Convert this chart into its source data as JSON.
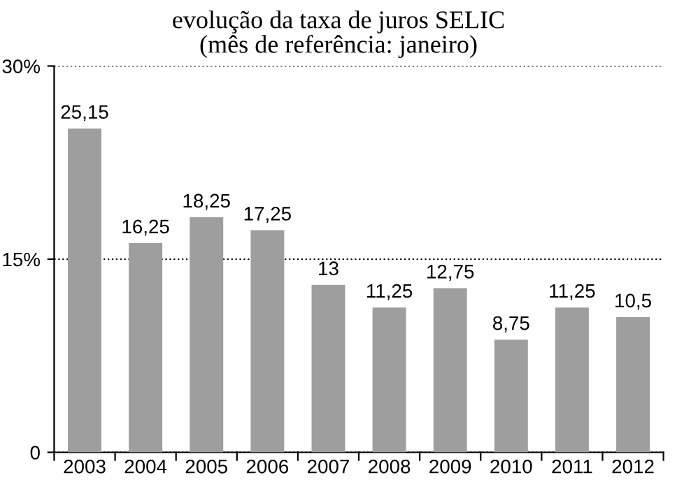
{
  "chart_data": {
    "type": "bar",
    "title": "evolução da taxa de juros SELIC",
    "subtitle": "(mês de referência: janeiro)",
    "categories": [
      "2003",
      "2004",
      "2005",
      "2006",
      "2007",
      "2008",
      "2009",
      "2010",
      "2011",
      "2012"
    ],
    "values": [
      25.15,
      16.25,
      18.25,
      17.25,
      13,
      11.25,
      12.75,
      8.75,
      11.25,
      10.5
    ],
    "value_labels": [
      "25,15",
      "16,25",
      "18,25",
      "17,25",
      "13",
      "11,25",
      "12,75",
      "8,75",
      "11,25",
      "10,5"
    ],
    "color": "#9e9e9e",
    "ylim": [
      0,
      30
    ],
    "yticks": [
      0,
      {
        "value": 15,
        "label": "15%"
      },
      {
        "value": 30,
        "label": "30%"
      }
    ],
    "grid": "y",
    "line_style": "dotted"
  }
}
